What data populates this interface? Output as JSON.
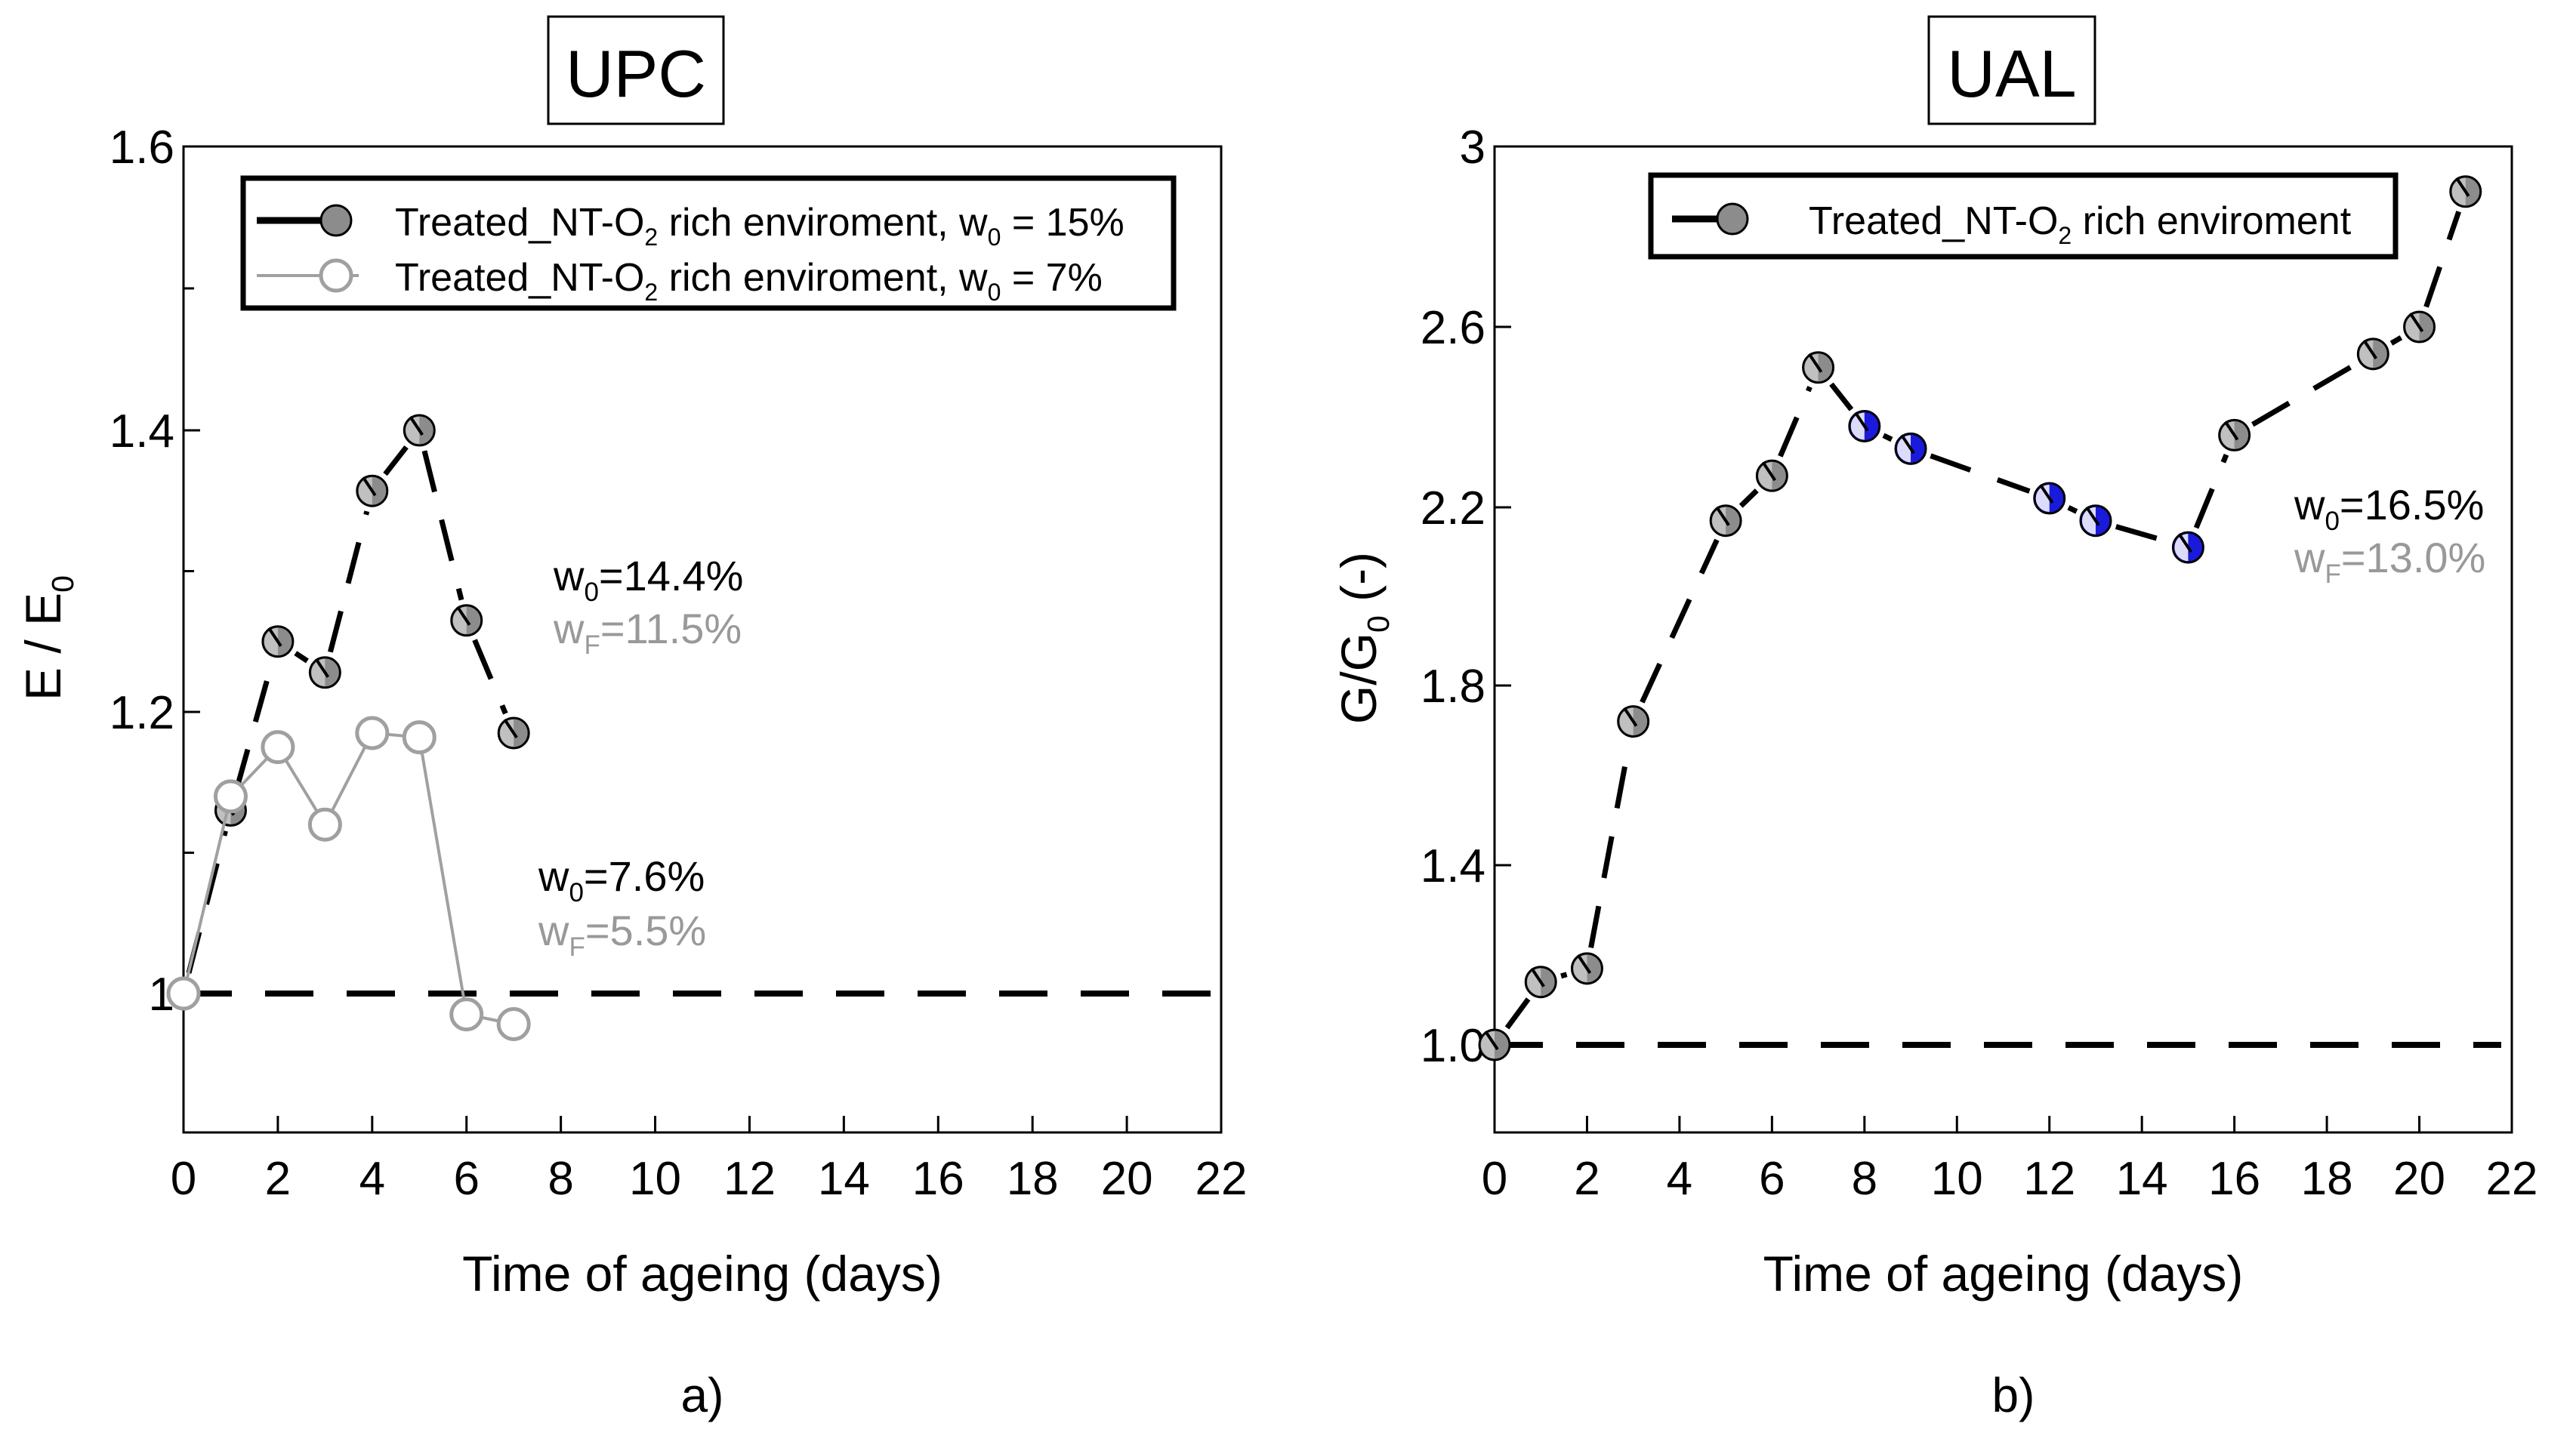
{
  "chart_data": [
    {
      "type": "line",
      "panel_label": "a)",
      "title": "UPC",
      "xlabel": "Time of ageing (days)",
      "ylabel": {
        "main": "E / E",
        "sub": "0"
      },
      "xlim": [
        0,
        22
      ],
      "ylim": [
        0.9,
        1.6
      ],
      "xticks": [
        0,
        2,
        4,
        6,
        8,
        10,
        12,
        14,
        16,
        18,
        20,
        22
      ],
      "yticks": [
        {
          "value": 1.0,
          "label": "1"
        },
        {
          "value": 1.2,
          "label": "1.2"
        },
        {
          "value": 1.4,
          "label": "1.4"
        },
        {
          "value": 1.6,
          "label": "1.6"
        }
      ],
      "reference_line": 1.0,
      "series": [
        {
          "name": "Treated_NT-O2 rich enviroment, w0 = 15%",
          "legend_parts": [
            "Treated_NT-O",
            "2",
            " rich enviroment, w",
            "0",
            " = 15%"
          ],
          "style": "dashed-black-filled-gray",
          "x": [
            0,
            1,
            2,
            3,
            4,
            5,
            6,
            7
          ],
          "y": [
            1.0,
            1.13,
            1.25,
            1.228,
            1.357,
            1.4,
            1.265,
            1.185
          ]
        },
        {
          "name": "Treated_NT-O2 rich enviroment, w0 = 7%",
          "legend_parts": [
            "Treated_NT-O",
            "2",
            " rich enviroment, w",
            "0",
            " = 7%"
          ],
          "style": "solid-gray-open",
          "x": [
            0,
            1,
            2,
            3,
            4,
            5,
            6,
            7
          ],
          "y": [
            1.0,
            1.14,
            1.175,
            1.12,
            1.185,
            1.182,
            0.985,
            0.978
          ]
        }
      ],
      "annotations": [
        {
          "color": "#000000",
          "parts": [
            "w",
            "0",
            "=14.4%"
          ]
        },
        {
          "color": "#999999",
          "parts": [
            "w",
            "F",
            "=11.5%"
          ]
        },
        {
          "color": "#000000",
          "parts": [
            "w",
            "0",
            "=7.6%"
          ]
        },
        {
          "color": "#999999",
          "parts": [
            "w",
            "F",
            "=5.5%"
          ]
        }
      ]
    },
    {
      "type": "line",
      "panel_label": "b)",
      "title": "UAL",
      "xlabel": "Time of ageing (days)",
      "ylabel": {
        "main": "G/G",
        "sub": "0",
        "suffix": " (-)"
      },
      "xlim": [
        0,
        22
      ],
      "ylim": [
        0.8,
        3.0
      ],
      "xticks": [
        0,
        2,
        4,
        6,
        8,
        10,
        12,
        14,
        16,
        18,
        20,
        22
      ],
      "yticks": [
        {
          "value": 1.0,
          "label": "1.0"
        },
        {
          "value": 1.4,
          "label": "1.4"
        },
        {
          "value": 1.8,
          "label": "1.8"
        },
        {
          "value": 2.2,
          "label": "2.2"
        },
        {
          "value": 2.6,
          "label": "2.6"
        },
        {
          "value": 3.0,
          "label": "3"
        }
      ],
      "reference_line": 1.0,
      "series": [
        {
          "name": "Treated_NT-O2 rich enviroment",
          "legend_parts": [
            "Treated_NT-O",
            "2",
            " rich enviroment"
          ],
          "style": "dashed-black-filled-gray",
          "x": [
            0,
            1,
            2,
            3,
            5,
            6,
            7,
            8,
            9,
            12,
            13,
            15,
            16,
            19,
            20,
            21
          ],
          "y": [
            1.0,
            1.14,
            1.17,
            1.72,
            2.17,
            2.27,
            2.51,
            2.38,
            2.33,
            2.22,
            2.17,
            2.11,
            2.36,
            2.54,
            2.6,
            2.9
          ],
          "highlight_indices": [
            7,
            8,
            9,
            10,
            11
          ]
        }
      ],
      "annotations": [
        {
          "color": "#000000",
          "parts": [
            "w",
            "0",
            "=16.5%"
          ]
        },
        {
          "color": "#999999",
          "parts": [
            "w",
            "F",
            "=13.0%"
          ]
        }
      ]
    }
  ],
  "colors": {
    "axis": "#000000",
    "marker_fill": "#8c8c8c",
    "highlight_fill": "#1a1adb",
    "open_series": "#a0a0a0",
    "annotation_gray": "#999999"
  }
}
